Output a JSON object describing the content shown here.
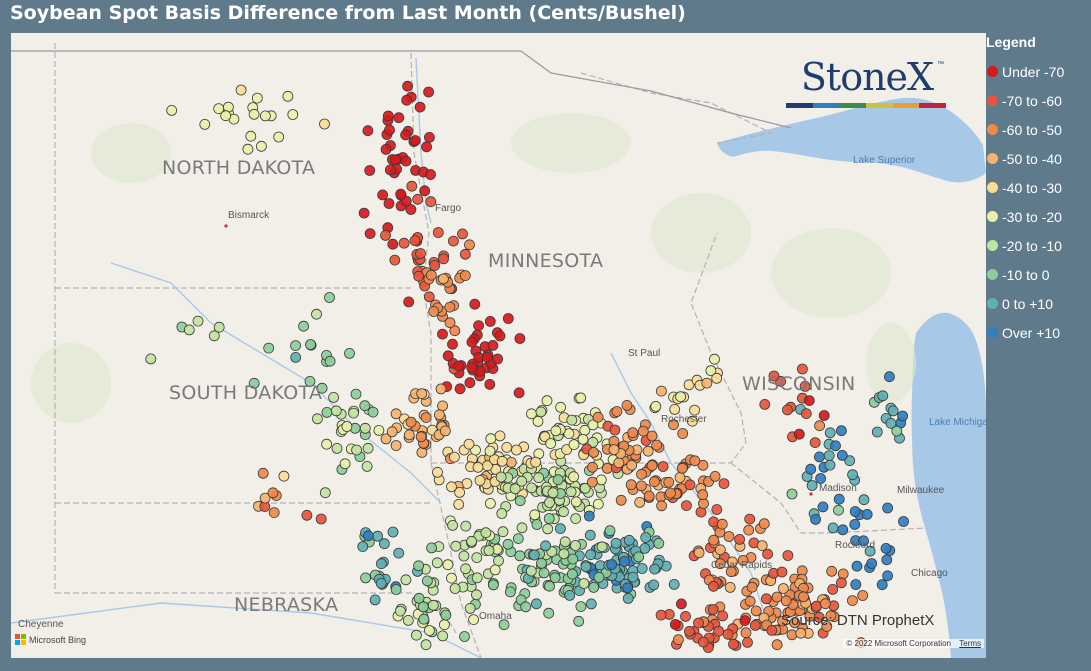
{
  "title": "Soybean Spot Basis Difference from Last Month (Cents/Bushel)",
  "legend": {
    "title": "Legend",
    "items": [
      {
        "label": "Under -70",
        "color": "#d7191c"
      },
      {
        "label": "-70 to -60",
        "color": "#e8553a"
      },
      {
        "label": "-60 to -50",
        "color": "#f08a4b"
      },
      {
        "label": "-50 to -40",
        "color": "#f7b26b"
      },
      {
        "label": "-40 to -30",
        "color": "#fbdc96"
      },
      {
        "label": "-30 to -20",
        "color": "#e8f1a8"
      },
      {
        "label": "-20 to -10",
        "color": "#c2e3a0"
      },
      {
        "label": "-10 to 0",
        "color": "#8ccd99"
      },
      {
        "label": "0 to +10",
        "color": "#5fb0b4"
      },
      {
        "label": "Over +10",
        "color": "#2f7fc1"
      }
    ]
  },
  "map": {
    "state_labels": [
      "NORTH DAKOTA",
      "SOUTH DAKOTA",
      "NEBRASKA",
      "MINNESOTA",
      "WISCONSIN"
    ],
    "city_labels": [
      "Bismarck",
      "Fargo",
      "St Paul",
      "Rochester",
      "Madison",
      "Milwaukee",
      "Rockford",
      "Chicago",
      "Cheyenne",
      "Omaha",
      "Cedar Rapids"
    ],
    "lake_labels": [
      "Lake Superior",
      "Lake Michigan"
    ],
    "source": "Source: DTN ProphetX",
    "attribution": "Microsoft Bing",
    "copyright": "© 2022 Microsoft Corporation",
    "terms": "Terms"
  },
  "logo": {
    "text": "StoneX",
    "tm": "™",
    "bar_colors": [
      "#1f3e6e",
      "#2f7fc1",
      "#3c8a4e",
      "#c9c23a",
      "#e8a030",
      "#c8203a"
    ]
  }
}
